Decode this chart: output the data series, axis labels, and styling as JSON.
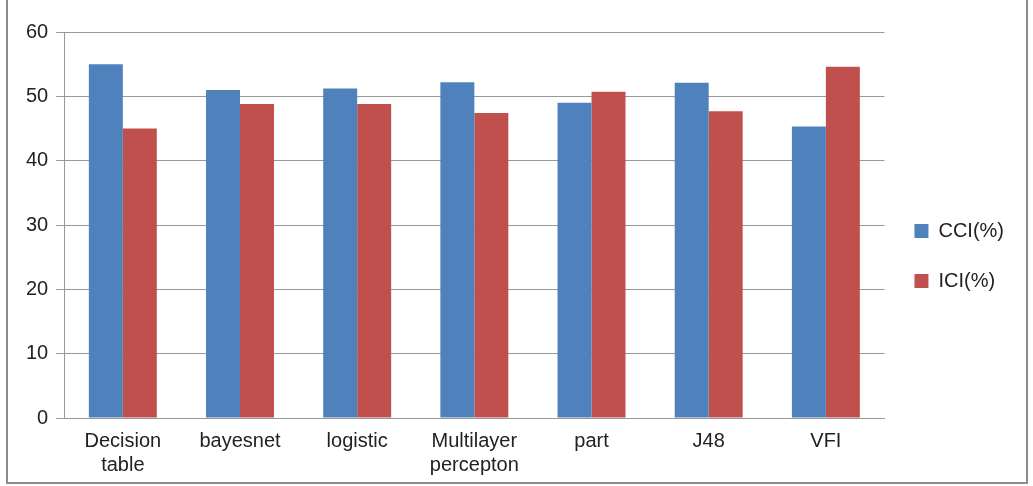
{
  "chart_data": {
    "type": "bar",
    "categories": [
      "Decision table",
      "bayesnet",
      "logistic",
      "Multilayer percepton",
      "part",
      "J48",
      "VFI"
    ],
    "series": [
      {
        "name": "CCI(%)",
        "color": "#4f81bd",
        "values": [
          55.0,
          51.0,
          51.2,
          52.2,
          49.0,
          52.1,
          45.3
        ]
      },
      {
        "name": "ICI(%)",
        "color": "#c0504d",
        "values": [
          45.0,
          48.8,
          48.8,
          47.4,
          50.7,
          47.7,
          54.6
        ]
      }
    ],
    "ylim": [
      0,
      60
    ],
    "yticks": [
      0,
      10,
      20,
      30,
      40,
      50,
      60
    ],
    "grid": "y",
    "legend": "right"
  }
}
